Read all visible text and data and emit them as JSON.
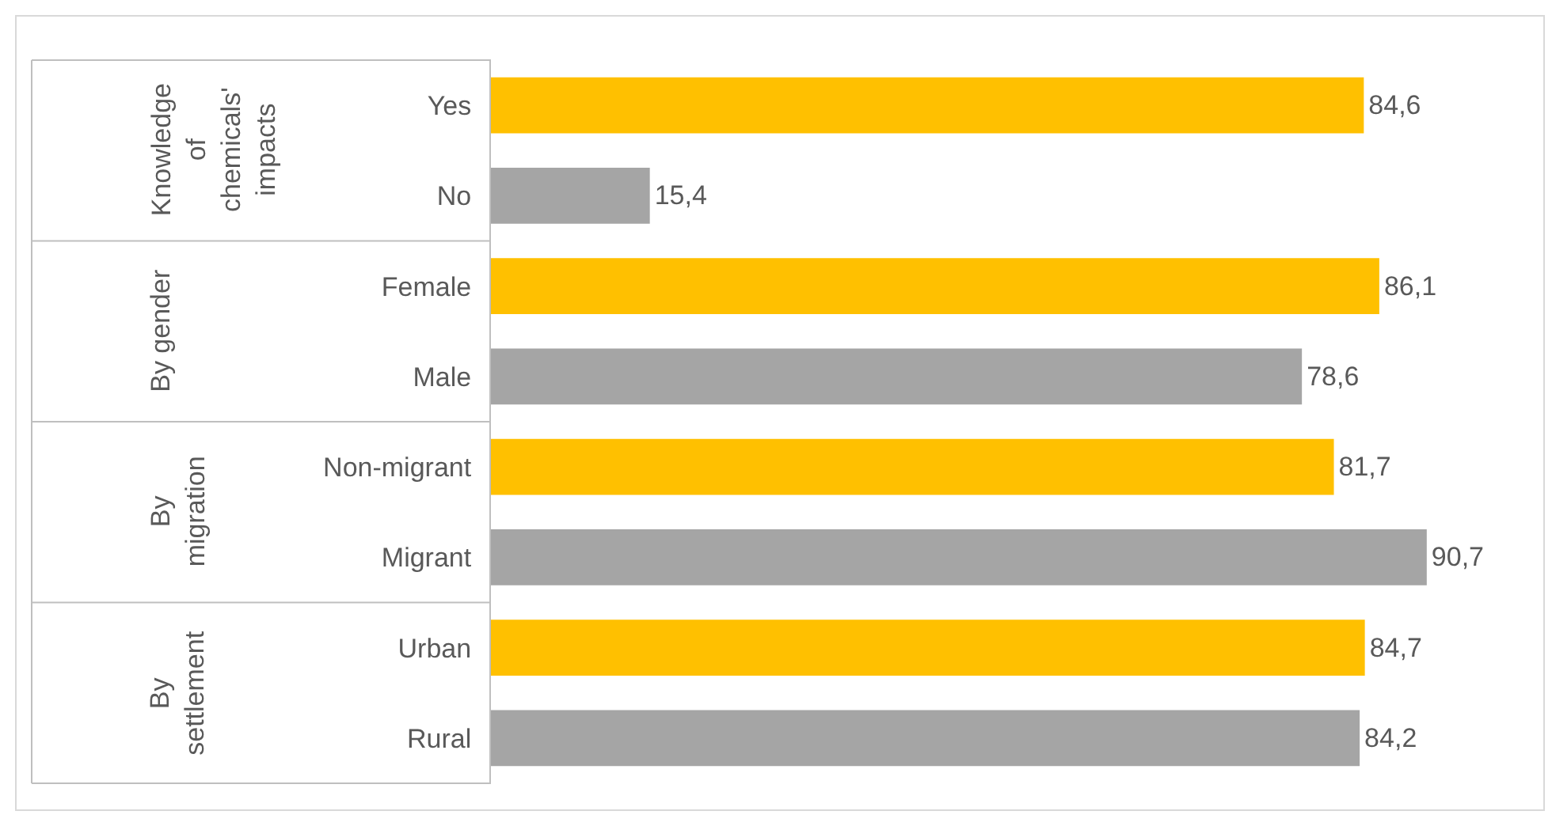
{
  "chart_data": {
    "type": "bar",
    "orientation": "horizontal",
    "categories": [
      "Yes",
      "No",
      "Female",
      "Male",
      "Non-migrant",
      "Migrant",
      "Urban",
      "Rural"
    ],
    "values": [
      84.6,
      15.4,
      86.1,
      78.6,
      81.7,
      90.7,
      84.7,
      84.2
    ],
    "value_labels": [
      "84,6",
      "15,4",
      "86,1",
      "78,6",
      "81,7",
      "90,7",
      "84,7",
      "84,2"
    ],
    "colors": [
      "#ffc000",
      "#a5a5a5",
      "#ffc000",
      "#a5a5a5",
      "#ffc000",
      "#a5a5a5",
      "#ffc000",
      "#a5a5a5"
    ],
    "annotations": [
      "Knowledge of chemicals' impacts",
      "By gender",
      "By migration",
      "By settlement"
    ],
    "legend": false
  }
}
